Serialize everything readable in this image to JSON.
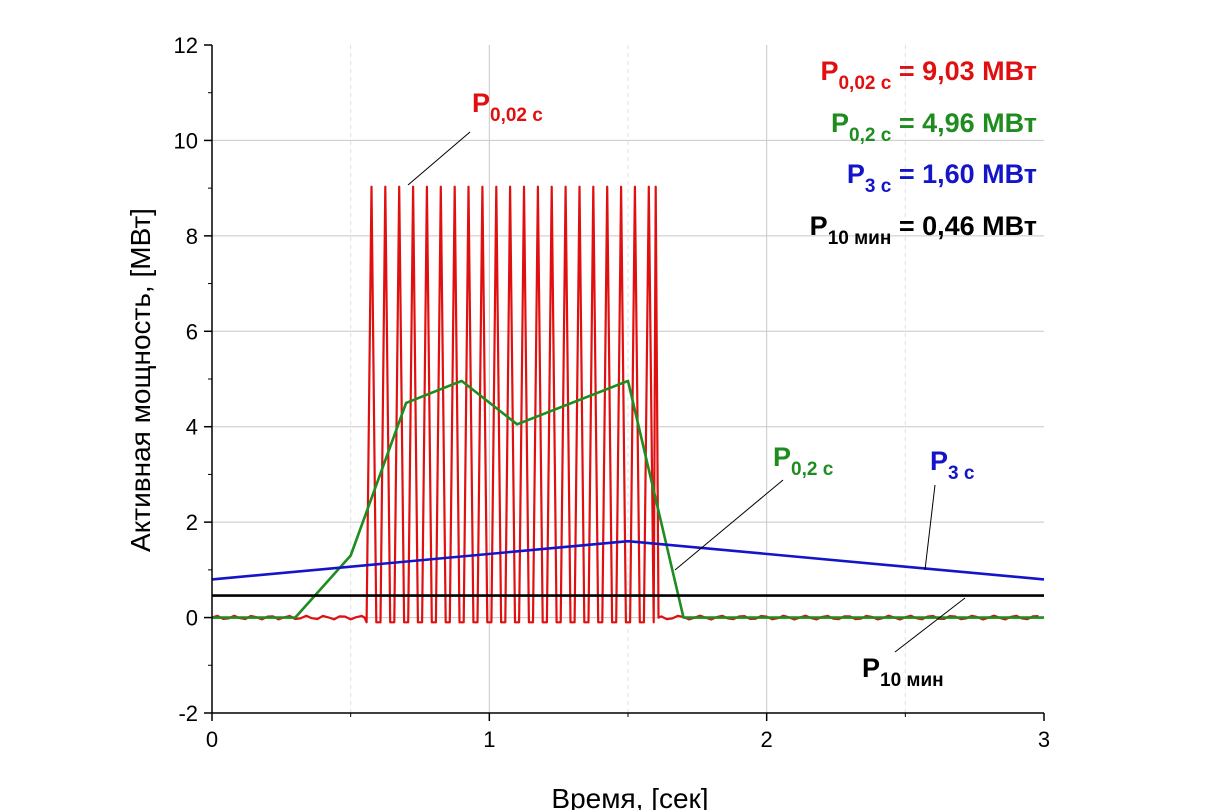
{
  "chart_data": {
    "type": "line",
    "xlabel": "Время, [сек]",
    "ylabel": "Активная мощность, [МВт]",
    "xlim": [
      0,
      3
    ],
    "ylim": [
      -2,
      12
    ],
    "x_ticks": [
      "0",
      "1",
      "2",
      "3"
    ],
    "y_ticks": [
      "-2",
      "0",
      "2",
      "4",
      "6",
      "8",
      "10",
      "12"
    ],
    "grid": true,
    "colors": {
      "p002": "#e01010",
      "p02": "#1e8c1e",
      "p3": "#1414c8",
      "p10": "#000000"
    },
    "series": [
      {
        "key": "p002",
        "label_main": "P",
        "label_sub": "0,02 с",
        "oscillation": {
          "x_start": 0.55,
          "x_end": 1.6,
          "period": 0.05,
          "peak": 9.03,
          "trough": -0.1
        },
        "baseline": 0
      },
      {
        "key": "p02",
        "label_main": "P",
        "label_sub": "0,2 с",
        "x": [
          0,
          0.3,
          0.5,
          0.7,
          0.9,
          1.1,
          1.5,
          1.7,
          3.0
        ],
        "values": [
          0,
          0,
          1.3,
          4.5,
          4.96,
          4.05,
          4.96,
          0,
          0
        ]
      },
      {
        "key": "p3",
        "label_main": "P",
        "label_sub": "3 с",
        "x": [
          0,
          1.5,
          3.0
        ],
        "values": [
          0.8,
          1.6,
          0.8
        ]
      },
      {
        "key": "p10",
        "label_main": "P",
        "label_sub": "10 мин",
        "x": [
          0,
          3.0
        ],
        "values": [
          0.46,
          0.46
        ]
      }
    ],
    "legend_values": [
      {
        "key": "p002",
        "main": "P",
        "sub": "0,02 с",
        "value": " = 9,03 МВт"
      },
      {
        "key": "p02",
        "main": "P",
        "sub": "0,2 с",
        "value": " = 4,96 МВт"
      },
      {
        "key": "p3",
        "main": "P",
        "sub": "3 с",
        "value": " = 1,60 МВт"
      },
      {
        "key": "p10",
        "main": "P",
        "sub": "10 мин",
        "value": " = 0,46 МВт"
      }
    ]
  }
}
